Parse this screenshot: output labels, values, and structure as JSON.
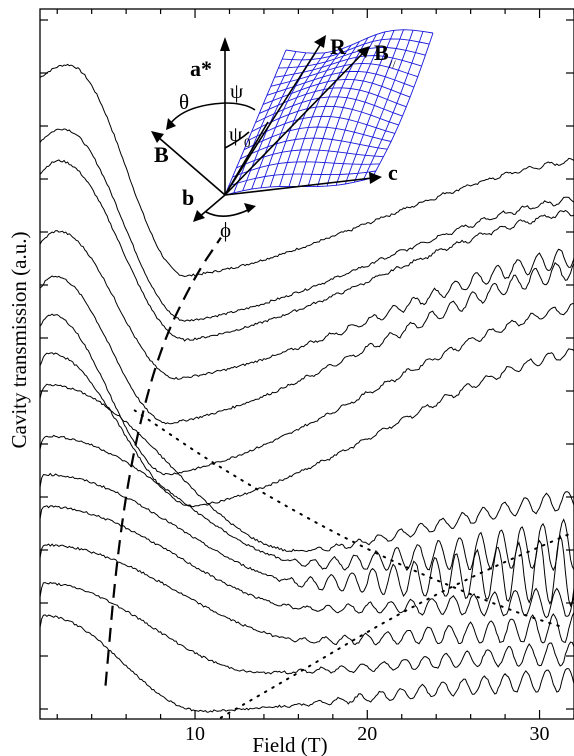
{
  "chart_data": {
    "type": "line",
    "xlabel": "Field (T)",
    "ylabel": "Cavity transmission (a.u.)",
    "xlim": [
      1,
      32
    ],
    "x_ticks": [
      10,
      20,
      30
    ],
    "x_tick_labels": [
      "10",
      "20",
      "30"
    ],
    "y_ticks_shown": true,
    "y_tick_labels": [],
    "grid": false,
    "legend": "none",
    "note": "",
    "series": [
      {
        "peak_x": 2.6,
        "peak_y": 0.93,
        "min_x": 9.5,
        "min_y": 0.6,
        "end_y": 0.78,
        "osc": 0.002
      },
      {
        "peak_x": 2.3,
        "peak_y": 0.83,
        "min_x": 9.5,
        "min_y": 0.53,
        "end_y": 0.72,
        "osc": 0.003
      },
      {
        "peak_x": 2.1,
        "peak_y": 0.78,
        "min_x": 9.5,
        "min_y": 0.5,
        "end_y": 0.7,
        "osc": 0.003
      },
      {
        "peak_x": 2.0,
        "peak_y": 0.67,
        "min_x": 9.0,
        "min_y": 0.44,
        "end_y": 0.63,
        "osc": 0.01
      },
      {
        "peak_x": 1.8,
        "peak_y": 0.6,
        "min_x": 8.5,
        "min_y": 0.37,
        "end_y": 0.61,
        "osc": 0.01
      },
      {
        "peak_x": 1.6,
        "peak_y": 0.54,
        "min_x": 8.5,
        "min_y": 0.29,
        "end_y": 0.55,
        "osc": 0.005
      },
      {
        "peak_x": 1.5,
        "peak_y": 0.48,
        "min_x": 10.0,
        "min_y": 0.24,
        "end_y": 0.48,
        "osc": 0.005
      },
      {
        "peak_x": 1.4,
        "peak_y": 0.43,
        "min_x": 16.0,
        "min_y": 0.17,
        "end_y": 0.25,
        "osc": 0.01
      },
      {
        "peak_x": 1.3,
        "peak_y": 0.35,
        "min_x": 17.0,
        "min_y": 0.15,
        "end_y": 0.18,
        "osc": 0.025
      },
      {
        "peak_x": 1.2,
        "peak_y": 0.29,
        "min_x": 17.0,
        "min_y": 0.12,
        "end_y": 0.14,
        "osc": 0.035
      },
      {
        "peak_x": 1.2,
        "peak_y": 0.24,
        "min_x": 17.0,
        "min_y": 0.08,
        "end_y": 0.09,
        "osc": 0.015
      },
      {
        "peak_x": 1.2,
        "peak_y": 0.18,
        "min_x": 17.0,
        "min_y": 0.03,
        "end_y": 0.05,
        "osc": 0.015
      },
      {
        "peak_x": 1.2,
        "peak_y": 0.12,
        "min_x": 14.0,
        "min_y": -0.02,
        "end_y": 0.01,
        "osc": 0.012
      },
      {
        "peak_x": 1.2,
        "peak_y": 0.07,
        "min_x": 10.5,
        "min_y": -0.08,
        "end_y": -0.03,
        "osc": 0.012
      }
    ],
    "dashed_guide": {
      "x": [
        4.8,
        5.5,
        6.5,
        8.0,
        10.0,
        11.5
      ],
      "y": [
        -0.04,
        0.17,
        0.34,
        0.49,
        0.6,
        0.66
      ]
    },
    "dotted_guides": [
      {
        "x": [
          6.5,
          12.0,
          20.0,
          28.0,
          31.5
        ],
        "y": [
          0.39,
          0.29,
          0.17,
          0.08,
          0.05
        ]
      },
      {
        "x": [
          11.5,
          16.0,
          21.0,
          26.0,
          32.0
        ],
        "y": [
          -0.09,
          -0.02,
          0.06,
          0.13,
          0.2
        ]
      }
    ]
  },
  "inset": {
    "labels": {
      "a_star": "a*",
      "R": "R",
      "B_par": "B",
      "B_par_sub": "//",
      "theta": "θ",
      "psi": "ψ",
      "psi0": "ψ",
      "psi0_sub": "0",
      "B": "B",
      "c": "c",
      "b": "b",
      "phi": "ϕ"
    },
    "surface_color": "#1a1adc"
  }
}
